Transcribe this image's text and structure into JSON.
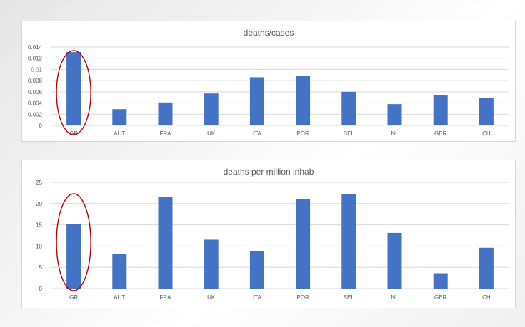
{
  "chart_data": [
    {
      "type": "bar",
      "title": "deaths/cases",
      "xlabel": "",
      "ylabel": "",
      "categories": [
        "GR",
        "AUT",
        "FRA",
        "UK",
        "ITA",
        "POR",
        "BEL",
        "NL",
        "GER",
        "CH"
      ],
      "values": [
        0.0131,
        0.0029,
        0.0041,
        0.0057,
        0.0086,
        0.0089,
        0.006,
        0.0038,
        0.0054,
        0.0049
      ],
      "ylim": [
        0,
        0.014
      ],
      "yticks": [
        0,
        0.002,
        0.004,
        0.006,
        0.008,
        0.01,
        0.012,
        0.014
      ],
      "ytick_labels": [
        "0",
        "0.002",
        "0.004",
        "0.006",
        "0.008",
        "0.01",
        "0.012",
        "0.014"
      ],
      "grid": true,
      "bar_color": "#4472C4",
      "highlight": "GR"
    },
    {
      "type": "bar",
      "title": "deaths per million inhab",
      "xlabel": "",
      "ylabel": "",
      "categories": [
        "GR",
        "AUT",
        "FRA",
        "UK",
        "ITA",
        "POR",
        "BEL",
        "NL",
        "GER",
        "CH"
      ],
      "values": [
        15.2,
        8.1,
        21.6,
        11.5,
        8.8,
        21.0,
        22.2,
        13.1,
        3.6,
        9.6
      ],
      "ylim": [
        0,
        25
      ],
      "yticks": [
        0,
        5,
        10,
        15,
        20,
        25
      ],
      "ytick_labels": [
        "0",
        "5",
        "10",
        "15",
        "20",
        "25"
      ],
      "grid": true,
      "bar_color": "#4472C4",
      "highlight": "GR"
    }
  ],
  "colors": {
    "bar": "#4472C4",
    "highlight_circle": "#C00000",
    "grid": "#d9d9d9",
    "text": "#595959"
  }
}
